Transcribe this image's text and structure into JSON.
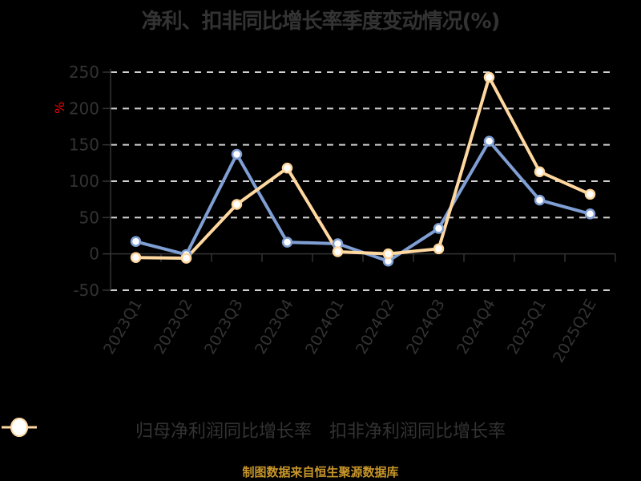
{
  "title": "净利、扣非同比增长率季度变动情况(%)",
  "y_unit": "%",
  "legend": [
    {
      "label": "归母净利润同比增长率",
      "color": "#7f9fd4"
    },
    {
      "label": "扣非净利润同比增长率",
      "color": "#ffd8a0"
    }
  ],
  "source": "制图数据来自恒生聚源数据库",
  "chart_data": {
    "type": "line",
    "title": "净利、扣非同比增长率季度变动情况(%)",
    "xlabel": "",
    "ylabel": "%",
    "categories": [
      "2023Q1",
      "2023Q2",
      "2023Q3",
      "2023Q4",
      "2024Q1",
      "2024Q2",
      "2024Q3",
      "2024Q4",
      "2025Q1",
      "2025Q2E"
    ],
    "series": [
      {
        "name": "归母净利润同比增长率",
        "color": "#7f9fd4",
        "values": [
          17,
          -1,
          137,
          16,
          14,
          -10,
          35,
          155,
          74,
          55
        ]
      },
      {
        "name": "扣非净利润同比增长率",
        "color": "#ffd8a0",
        "values": [
          -5,
          -6,
          68,
          118,
          3,
          0,
          7,
          243,
          113,
          82
        ]
      }
    ],
    "yticks": [
      250,
      200,
      150,
      100,
      50,
      0,
      -50
    ],
    "ylim": [
      -50,
      250
    ],
    "grid": true,
    "legend_position": "bottom"
  }
}
